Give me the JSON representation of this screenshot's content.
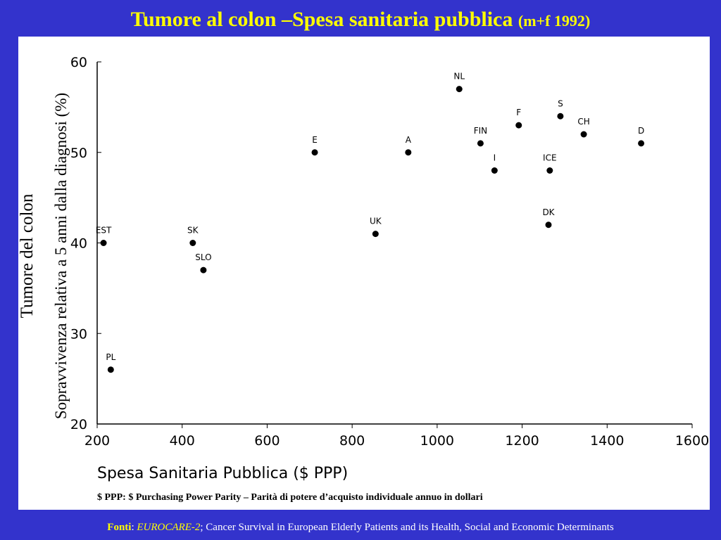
{
  "slide": {
    "title_main": "Tumore al colon –Spesa sanitaria pubblica",
    "title_sub": "(m+f 1992)"
  },
  "chart_data": {
    "type": "scatter",
    "xlabel": "Spesa Sanitaria Pubblica ($ PPP)",
    "ylabel_outer": "Tumore del colon",
    "ylabel_inner": "Sopravvivenza relativa a 5 anni dalla diagnosi (%)",
    "xlim": [
      200,
      1600
    ],
    "ylim": [
      20,
      60
    ],
    "xticks": [
      200,
      400,
      600,
      800,
      1000,
      1200,
      1400,
      1600
    ],
    "yticks": [
      20,
      30,
      40,
      50,
      60
    ],
    "grid": false,
    "points": [
      {
        "label": "EST",
        "x": 215,
        "y": 40
      },
      {
        "label": "PL",
        "x": 232,
        "y": 26
      },
      {
        "label": "SK",
        "x": 425,
        "y": 40
      },
      {
        "label": "SLO",
        "x": 450,
        "y": 37
      },
      {
        "label": "E",
        "x": 712,
        "y": 50
      },
      {
        "label": "UK",
        "x": 855,
        "y": 41
      },
      {
        "label": "A",
        "x": 932,
        "y": 50
      },
      {
        "label": "NL",
        "x": 1052,
        "y": 57
      },
      {
        "label": "FIN",
        "x": 1102,
        "y": 51
      },
      {
        "label": "I",
        "x": 1135,
        "y": 48
      },
      {
        "label": "F",
        "x": 1192,
        "y": 53
      },
      {
        "label": "ICE",
        "x": 1265,
        "y": 48
      },
      {
        "label": "DK",
        "x": 1262,
        "y": 42
      },
      {
        "label": "S",
        "x": 1290,
        "y": 54
      },
      {
        "label": "CH",
        "x": 1345,
        "y": 52
      },
      {
        "label": "D",
        "x": 1480,
        "y": 51
      }
    ],
    "footnote": "$ PPP: $ Purchasing Power Parity – Parità di potere d’acquisto individuale annuo in dollari"
  },
  "footer": {
    "label": "Fonti",
    "sep": ": ",
    "source": "EUROCARE-2",
    "text": "; Cancer Survival in European Elderly Patients and its Health, Social and Economic Determinants"
  }
}
